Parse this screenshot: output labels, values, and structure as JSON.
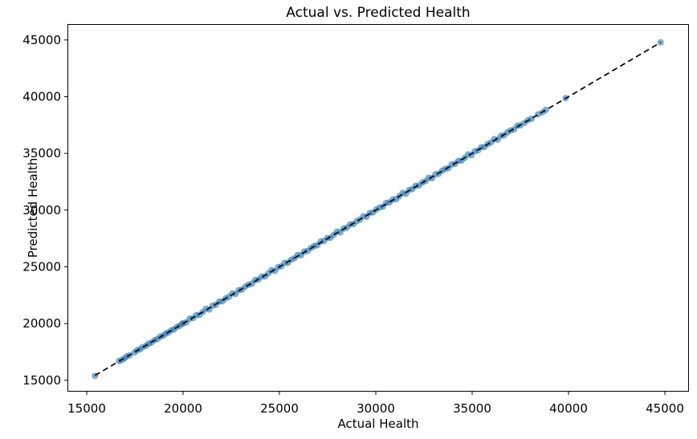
{
  "chart_data": {
    "type": "scatter",
    "title": "Actual vs. Predicted Health",
    "xlabel": "Actual Health",
    "ylabel": "Predicted Health",
    "xlim": [
      14000,
      46250
    ],
    "ylim": [
      14000,
      46400
    ],
    "xticks": [
      15000,
      20000,
      25000,
      30000,
      35000,
      40000,
      45000
    ],
    "yticks": [
      15000,
      20000,
      25000,
      30000,
      35000,
      40000,
      45000
    ],
    "grid": false,
    "legend": null,
    "marker_color": "#1f77b4",
    "marker_alpha": 0.6,
    "marker_radius_px": 4,
    "axis_color": "#000000",
    "reference_line": {
      "style": "dashed",
      "color": "#000000",
      "from": [
        15430,
        15430
      ],
      "to": [
        44780,
        44780
      ]
    },
    "points": [
      [
        15430,
        15390
      ],
      [
        16680,
        16700
      ],
      [
        16820,
        16790
      ],
      [
        16960,
        16930
      ],
      [
        17080,
        17110
      ],
      [
        17230,
        17200
      ],
      [
        17480,
        17460
      ],
      [
        17620,
        17650
      ],
      [
        17760,
        17730
      ],
      [
        17900,
        17920
      ],
      [
        18080,
        18050
      ],
      [
        18210,
        18230
      ],
      [
        18360,
        18330
      ],
      [
        18520,
        18540
      ],
      [
        18670,
        18640
      ],
      [
        18820,
        18850
      ],
      [
        18960,
        18930
      ],
      [
        19100,
        19120
      ],
      [
        19230,
        19210
      ],
      [
        19380,
        19400
      ],
      [
        19520,
        19490
      ],
      [
        19680,
        19700
      ],
      [
        19830,
        19810
      ],
      [
        19960,
        19990
      ],
      [
        20000,
        20030
      ],
      [
        20170,
        20110
      ],
      [
        20340,
        20430
      ],
      [
        20510,
        20480
      ],
      [
        20680,
        20740
      ],
      [
        20850,
        20760
      ],
      [
        21020,
        21020
      ],
      [
        21190,
        21310
      ],
      [
        21360,
        21240
      ],
      [
        21530,
        21575
      ],
      [
        21700,
        21655
      ],
      [
        21870,
        21945
      ],
      [
        22040,
        21965
      ],
      [
        22210,
        22225
      ],
      [
        22380,
        22365
      ],
      [
        22550,
        22655
      ],
      [
        22720,
        22615
      ],
      [
        22890,
        22950
      ],
      [
        23060,
        23000
      ],
      [
        23230,
        23260
      ],
      [
        23400,
        23430
      ],
      [
        23570,
        23510
      ],
      [
        23740,
        23830
      ],
      [
        23910,
        23880
      ],
      [
        24080,
        24140
      ],
      [
        24250,
        24160
      ],
      [
        24420,
        24420
      ],
      [
        24590,
        24710
      ],
      [
        24760,
        24640
      ],
      [
        24930,
        24975
      ],
      [
        25100,
        25055
      ],
      [
        25270,
        25345
      ],
      [
        25440,
        25365
      ],
      [
        25610,
        25625
      ],
      [
        25780,
        25765
      ],
      [
        25950,
        26055
      ],
      [
        26120,
        26015
      ],
      [
        26290,
        26350
      ],
      [
        26460,
        26400
      ],
      [
        26630,
        26660
      ],
      [
        26800,
        26830
      ],
      [
        26970,
        26910
      ],
      [
        27140,
        27230
      ],
      [
        27310,
        27280
      ],
      [
        27480,
        27540
      ],
      [
        27650,
        27560
      ],
      [
        27820,
        27820
      ],
      [
        27990,
        28110
      ],
      [
        28160,
        28040
      ],
      [
        28330,
        28375
      ],
      [
        28500,
        28455
      ],
      [
        28670,
        28745
      ],
      [
        28840,
        28765
      ],
      [
        29010,
        29025
      ],
      [
        29180,
        29165
      ],
      [
        29350,
        29455
      ],
      [
        29520,
        29415
      ],
      [
        29690,
        29750
      ],
      [
        29860,
        29800
      ],
      [
        30030,
        30060
      ],
      [
        30200,
        30230
      ],
      [
        30370,
        30310
      ],
      [
        30540,
        30630
      ],
      [
        30710,
        30680
      ],
      [
        30880,
        30940
      ],
      [
        31050,
        30960
      ],
      [
        31220,
        31220
      ],
      [
        31390,
        31510
      ],
      [
        31560,
        31440
      ],
      [
        31730,
        31775
      ],
      [
        31900,
        31855
      ],
      [
        32070,
        32145
      ],
      [
        32240,
        32165
      ],
      [
        32410,
        32425
      ],
      [
        32580,
        32565
      ],
      [
        32750,
        32855
      ],
      [
        32920,
        32815
      ],
      [
        33090,
        33150
      ],
      [
        33260,
        33200
      ],
      [
        33430,
        33460
      ],
      [
        33600,
        33630
      ],
      [
        33770,
        33710
      ],
      [
        33940,
        34030
      ],
      [
        34110,
        34080
      ],
      [
        34280,
        34340
      ],
      [
        34450,
        34360
      ],
      [
        34620,
        34620
      ],
      [
        34790,
        34910
      ],
      [
        34960,
        34840
      ],
      [
        35130,
        35175
      ],
      [
        35300,
        35255
      ],
      [
        35470,
        35545
      ],
      [
        35640,
        35565
      ],
      [
        35810,
        35825
      ],
      [
        35980,
        35965
      ],
      [
        36150,
        36255
      ],
      [
        36320,
        36215
      ],
      [
        36490,
        36550
      ],
      [
        36660,
        36600
      ],
      [
        36830,
        36860
      ],
      [
        37000,
        37030
      ],
      [
        37170,
        37110
      ],
      [
        37340,
        37430
      ],
      [
        37510,
        37480
      ],
      [
        37720,
        37700
      ],
      [
        37900,
        37930
      ],
      [
        38080,
        38050
      ],
      [
        38420,
        38440
      ],
      [
        38650,
        38620
      ],
      [
        38820,
        38840
      ],
      [
        39850,
        39870
      ],
      [
        44780,
        44790
      ]
    ]
  }
}
